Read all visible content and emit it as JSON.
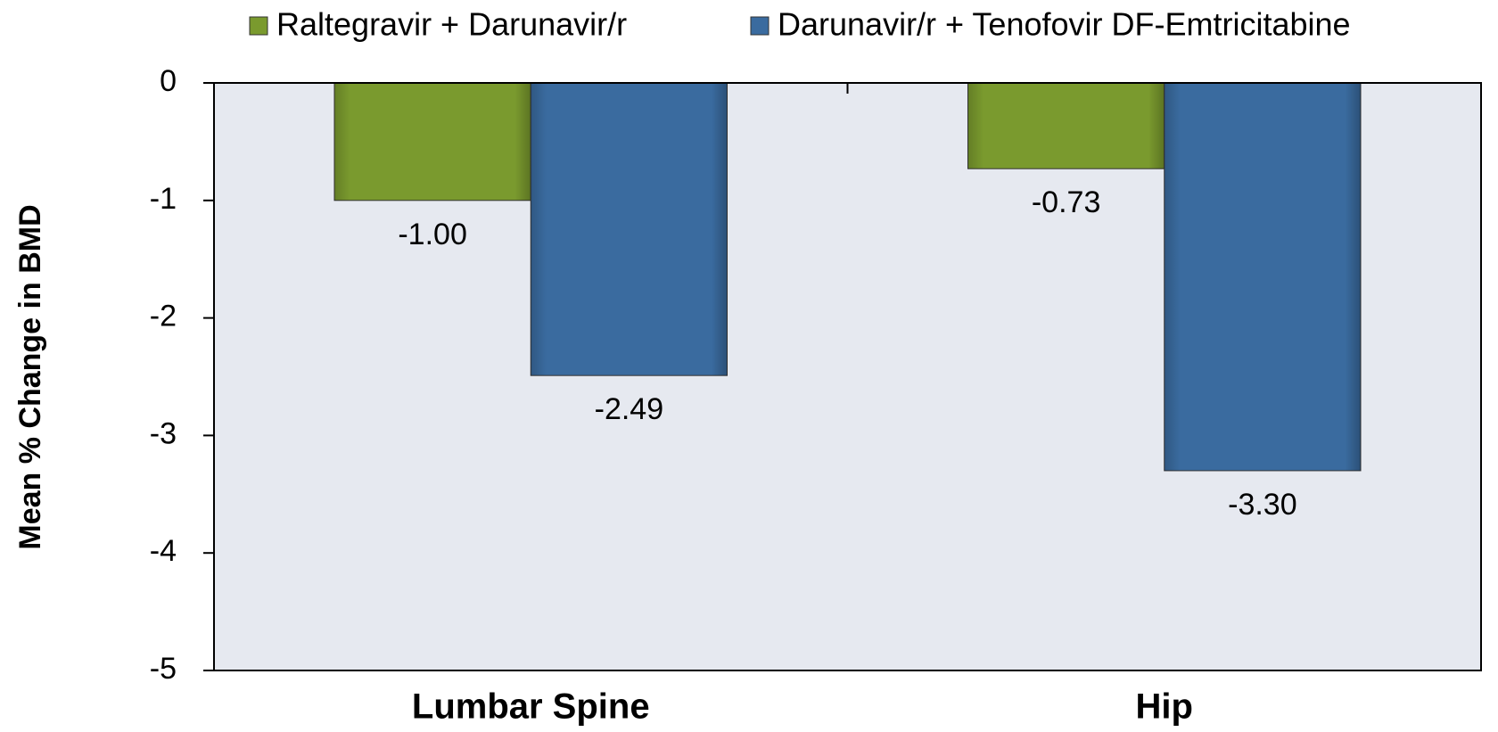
{
  "chart_data": {
    "type": "bar",
    "ylabel": "Mean % Change in BMD",
    "categories": [
      "Lumbar Spine",
      "Hip"
    ],
    "series": [
      {
        "name": "Raltegravir + Darunavir/r",
        "color": "#7a9a2e",
        "values": [
          -1.0,
          -0.73
        ],
        "value_labels": [
          "-1.00",
          "-0.73"
        ]
      },
      {
        "name": "Darunavir/r + Tenofovir DF-Emtricitabine",
        "color": "#3a6b9f",
        "values": [
          -2.49,
          -3.3
        ],
        "value_labels": [
          "-2.49",
          "-3.30"
        ]
      }
    ],
    "ylim": [
      -5,
      0
    ],
    "yticks": [
      0,
      -1,
      -2,
      -3,
      -4,
      -5
    ],
    "grid": false,
    "legend": "top"
  }
}
